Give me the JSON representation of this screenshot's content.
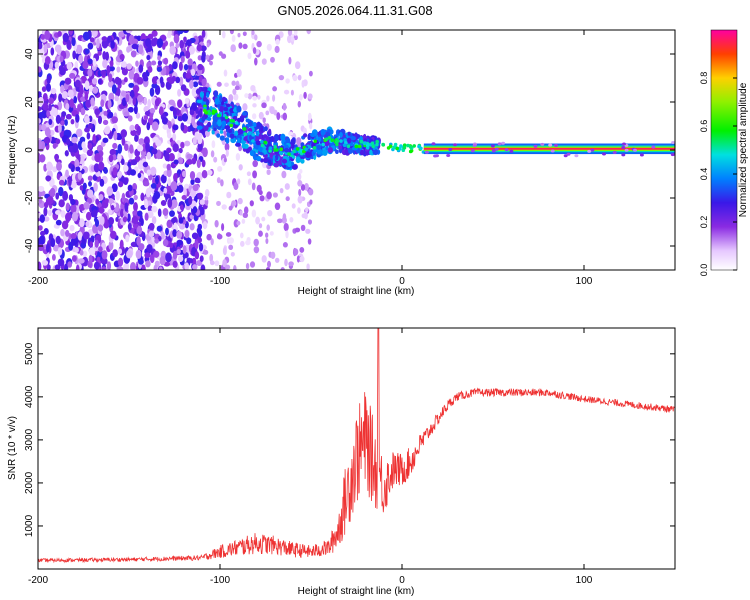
{
  "title": "GN05.2026.064.11.31.G08",
  "chart_data": [
    {
      "type": "heatmap",
      "xlabel": "Height of straight line (km)",
      "ylabel": "Frequency (Hz)",
      "xlim": [
        -200,
        150
      ],
      "ylim": [
        -50,
        50
      ],
      "x_ticks": [
        -200,
        -100,
        0,
        100
      ],
      "x_tick_labels": [
        "-200",
        "-100",
        "0",
        "100"
      ],
      "y_ticks": [
        -40,
        -20,
        0,
        20,
        40
      ],
      "y_tick_labels": [
        "-40",
        "-20",
        "0",
        "20",
        "40"
      ],
      "colorbar": {
        "label": "Normalized spectral amplitude",
        "range": [
          0,
          1
        ],
        "ticks": [
          0.0,
          0.2,
          0.4,
          0.6,
          0.8
        ],
        "tick_labels": [
          "0.0",
          "0.2",
          "0.4",
          "0.6",
          "0.8"
        ],
        "stops": [
          [
            0.0,
            "#ffffff"
          ],
          [
            0.08,
            "#e6c8ff"
          ],
          [
            0.18,
            "#8a2be2"
          ],
          [
            0.28,
            "#3a18e8"
          ],
          [
            0.38,
            "#0080ff"
          ],
          [
            0.48,
            "#00e0e0"
          ],
          [
            0.58,
            "#00f000"
          ],
          [
            0.7,
            "#90f000"
          ],
          [
            0.8,
            "#ffd000"
          ],
          [
            0.9,
            "#ff4000"
          ],
          [
            1.0,
            "#ff00a0"
          ]
        ]
      },
      "regions": [
        {
          "x_range": [
            -200,
            -108
          ],
          "f_range": [
            -50,
            50
          ],
          "amplitude": 0.22,
          "note": "dense noise"
        },
        {
          "x_range": [
            -108,
            -50
          ],
          "f_range": [
            -50,
            50
          ],
          "amplitude": 0.08,
          "note": "sparse noise"
        },
        {
          "x_range": [
            -50,
            -15
          ],
          "f_range": [
            -10,
            10
          ],
          "amplitude": 0.35,
          "note": "converging"
        },
        {
          "x_range": [
            12,
            150
          ],
          "f_range": [
            -1,
            1
          ],
          "amplitude": 0.95,
          "note": "steady tone"
        }
      ],
      "ridge": {
        "x": [
          -110,
          -100,
          -90,
          -80,
          -70,
          -60,
          -50,
          -40,
          -30,
          -20,
          -10,
          0,
          12,
          150
        ],
        "f": [
          18,
          14,
          10,
          4,
          0,
          -2,
          2,
          4,
          3,
          2,
          2,
          1,
          0.5,
          0.5
        ]
      }
    },
    {
      "type": "line",
      "xlabel": "Height of straight line (km)",
      "ylabel": "SNR (10 * v/v)",
      "xlim": [
        -200,
        150
      ],
      "ylim": [
        0,
        5600
      ],
      "x_ticks": [
        -200,
        -100,
        0,
        100
      ],
      "x_tick_labels": [
        "-200",
        "-100",
        "0",
        "100"
      ],
      "y_ticks": [
        1000,
        2000,
        3000,
        4000,
        5000
      ],
      "y_tick_labels": [
        "1000",
        "2000",
        "3000",
        "4000",
        "5000"
      ],
      "series": [
        {
          "name": "SNR",
          "color": "#ee3333",
          "x": [
            -200,
            -150,
            -110,
            -100,
            -90,
            -80,
            -70,
            -60,
            -50,
            -40,
            -35,
            -30,
            -25,
            -20,
            -15,
            -10,
            -5,
            0,
            5,
            10,
            15,
            20,
            25,
            30,
            40,
            60,
            80,
            100,
            120,
            150
          ],
          "y": [
            200,
            220,
            260,
            400,
            500,
            600,
            550,
            450,
            400,
            500,
            900,
            1800,
            2600,
            3000,
            2400,
            1900,
            2300,
            2300,
            2500,
            2900,
            3200,
            3500,
            3800,
            4000,
            4100,
            4100,
            4100,
            3950,
            3850,
            3700
          ],
          "noise": [
            40,
            45,
            60,
            150,
            200,
            250,
            220,
            180,
            150,
            200,
            450,
            900,
            1100,
            1200,
            1000,
            700,
            450,
            400,
            350,
            250,
            180,
            150,
            120,
            100,
            90,
            90,
            90,
            80,
            80,
            80
          ]
        }
      ]
    }
  ]
}
